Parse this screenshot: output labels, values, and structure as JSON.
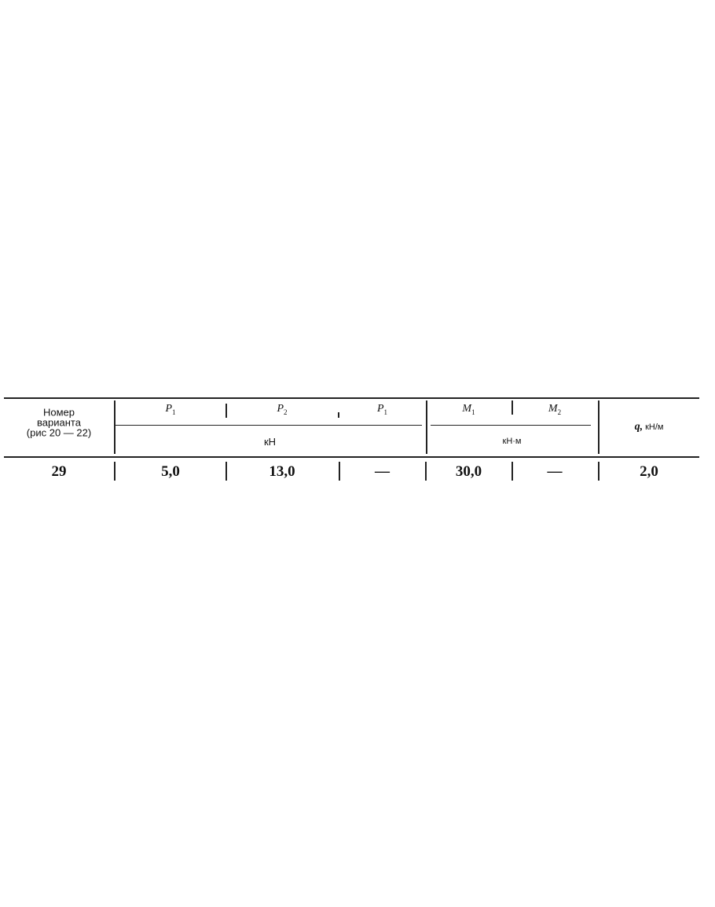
{
  "table": {
    "header": {
      "variant_col": [
        "Номер",
        "варианта",
        "(рис  20 — 22)"
      ],
      "forces": [
        {
          "symbol": "P",
          "sub": "1"
        },
        {
          "symbol": "P",
          "sub": "2"
        },
        {
          "symbol": "P",
          "sub": "1"
        }
      ],
      "force_unit": "кН",
      "moments": [
        {
          "symbol": "M",
          "sub": "1"
        },
        {
          "symbol": "M",
          "sub": "2"
        }
      ],
      "moment_unit": "кН·м",
      "q_symbol": "q,",
      "q_unit": "кН/м"
    },
    "rows": [
      {
        "variant": "29",
        "P1": "5,0",
        "P2": "13,0",
        "P3": "—",
        "M1": "30,0",
        "M2": "—",
        "q": "2,0"
      }
    ]
  }
}
